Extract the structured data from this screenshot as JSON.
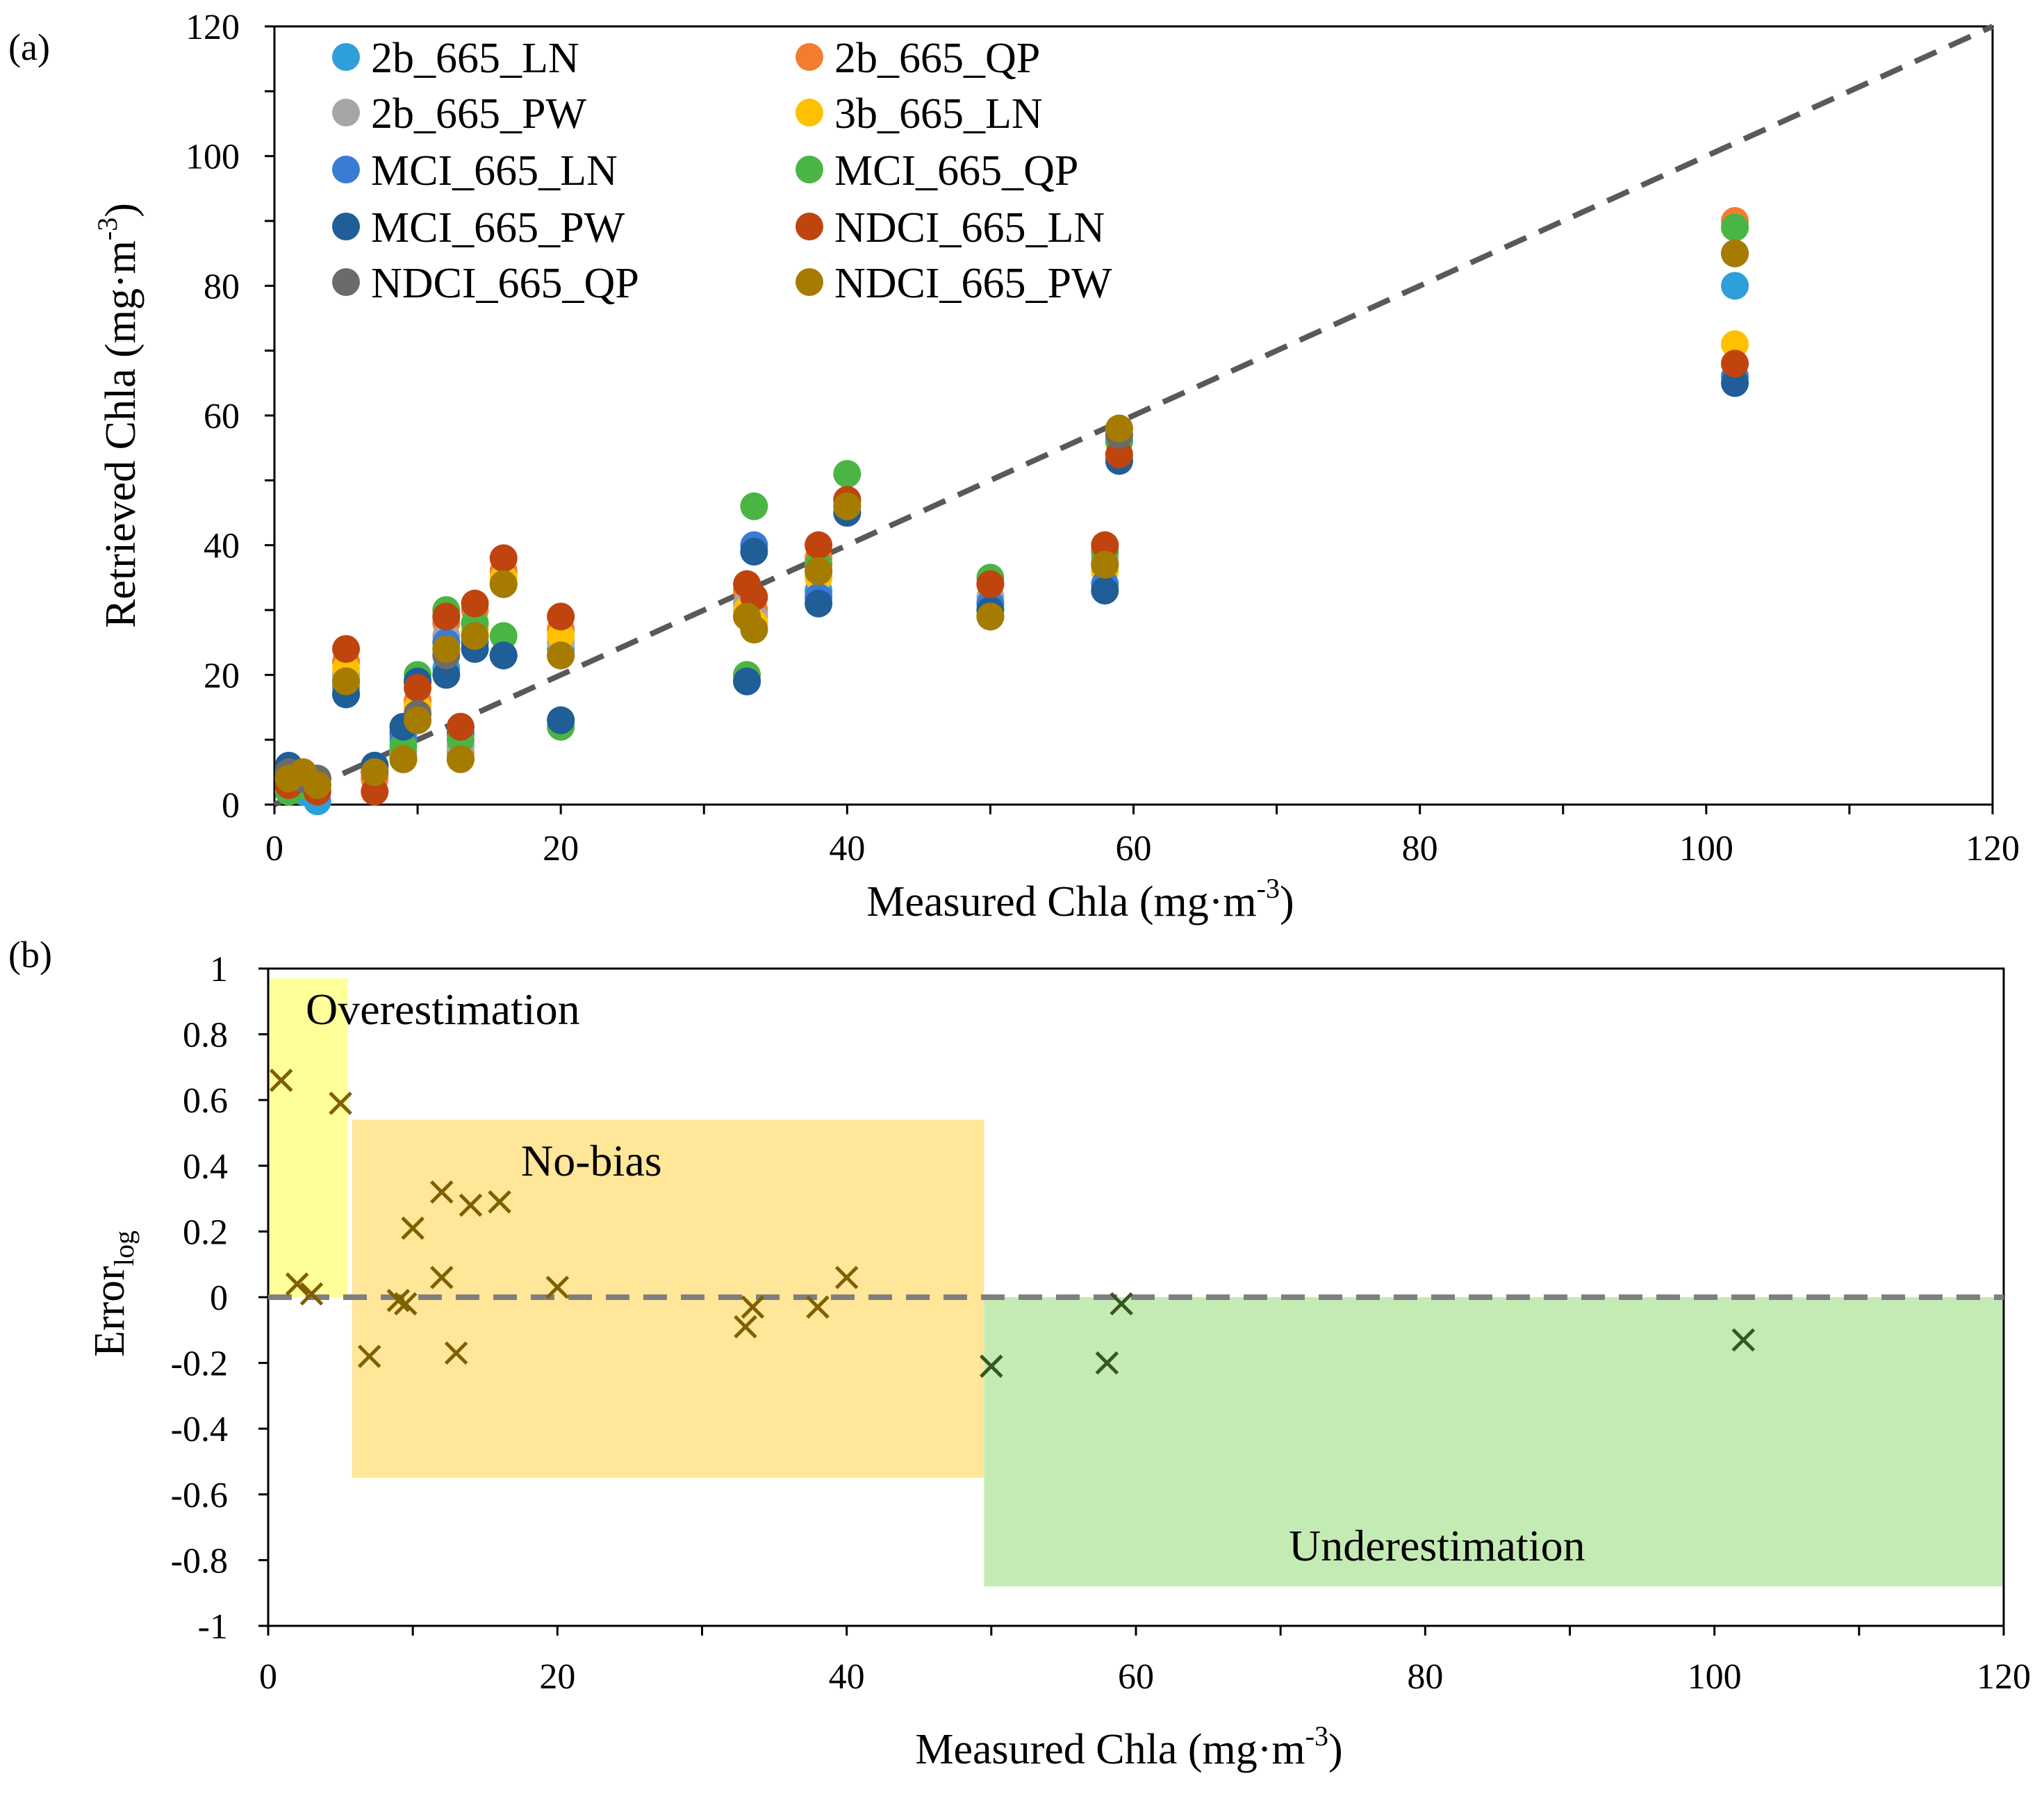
{
  "chart_data": [
    {
      "type": "scatter",
      "panel_label": "(a)",
      "title": "",
      "xlabel": "Measured Chla (mg·m",
      "ylabel": "Retrieved Chla (mg·m",
      "unit_exponent": "-3",
      "unit_close": ")",
      "xlim": [
        0,
        120
      ],
      "ylim": [
        0,
        120
      ],
      "xticks": [
        "0",
        "20",
        "40",
        "60",
        "80",
        "100",
        "120"
      ],
      "yticks": [
        "0",
        "20",
        "40",
        "60",
        "80",
        "100",
        "120"
      ],
      "reference_line": {
        "style": "dashed",
        "color": "#595959",
        "x": [
          0,
          120
        ],
        "y": [
          0,
          120
        ]
      },
      "legend_placement": "top-left",
      "series": [
        {
          "name": "2b_665_LN",
          "color": "#2E9FD8",
          "x": [
            1,
            2,
            3,
            5,
            7,
            9,
            10,
            12,
            13,
            14,
            16,
            20,
            33,
            33.5,
            38,
            40,
            50,
            58,
            59,
            102
          ],
          "y": [
            5,
            2,
            0.5,
            18,
            5,
            10,
            19,
            21,
            11,
            25,
            23,
            24,
            31,
            28,
            33,
            46,
            31,
            37,
            56,
            80
          ]
        },
        {
          "name": "2b_665_QP",
          "color": "#F47C2F",
          "x": [
            1,
            2,
            3,
            5,
            7,
            9,
            10,
            12,
            13,
            14,
            16,
            20,
            33,
            33.5,
            38,
            40,
            50,
            58,
            59,
            102
          ],
          "y": [
            4,
            3,
            3,
            22,
            4,
            8,
            16,
            28,
            8,
            30,
            36,
            27,
            33,
            30,
            38,
            47,
            34,
            39,
            57,
            90
          ]
        },
        {
          "name": "2b_665_PW",
          "color": "#A6A6A6",
          "x": [
            1,
            2,
            3,
            5,
            7,
            9,
            10,
            12,
            13,
            14,
            16,
            20,
            33,
            33.5,
            38,
            40,
            50,
            58,
            59,
            102
          ],
          "y": [
            4,
            3,
            3,
            20,
            5,
            8,
            15,
            26,
            9,
            28,
            34,
            25,
            31,
            29,
            36,
            46,
            32,
            38,
            57,
            89
          ]
        },
        {
          "name": "3b_665_LN",
          "color": "#FFC000",
          "x": [
            1,
            2,
            3,
            5,
            7,
            9,
            10,
            12,
            13,
            14,
            16,
            20,
            33,
            33.5,
            38,
            40,
            50,
            58,
            59,
            102
          ],
          "y": [
            4,
            4,
            3,
            21,
            5,
            7,
            15,
            24,
            10,
            27,
            35,
            26,
            30,
            28,
            35,
            45,
            30,
            36,
            58,
            71
          ]
        },
        {
          "name": "MCI_665_LN",
          "color": "#3A7BD5",
          "x": [
            1,
            2,
            3,
            5,
            7,
            9,
            10,
            12,
            13,
            14,
            16,
            20,
            33,
            33.5,
            38,
            40,
            50,
            58,
            59,
            102
          ],
          "y": [
            5,
            4,
            4,
            17,
            6,
            11,
            19,
            25,
            11,
            25,
            23,
            13,
            19,
            40,
            32,
            45,
            31,
            34,
            53,
            66
          ]
        },
        {
          "name": "MCI_665_QP",
          "color": "#4BB544",
          "x": [
            1,
            2,
            3,
            5,
            7,
            9,
            10,
            12,
            13,
            14,
            16,
            20,
            33,
            33.5,
            38,
            40,
            50,
            58,
            59,
            102
          ],
          "y": [
            2,
            3,
            3,
            19,
            6,
            9,
            20,
            30,
            10,
            28,
            26,
            12,
            20,
            46,
            37,
            51,
            35,
            39,
            56,
            89
          ]
        },
        {
          "name": "MCI_665_PW",
          "color": "#1F5E96",
          "x": [
            1,
            2,
            3,
            5,
            7,
            9,
            10,
            12,
            13,
            14,
            16,
            20,
            33,
            33.5,
            38,
            40,
            50,
            58,
            59,
            102
          ],
          "y": [
            6,
            4,
            4,
            17,
            6,
            12,
            19,
            20,
            12,
            24,
            23,
            13,
            19,
            39,
            31,
            45,
            30,
            33,
            53,
            65
          ]
        },
        {
          "name": "NDCI_665_LN",
          "color": "#C0440E",
          "x": [
            1,
            2,
            3,
            5,
            7,
            9,
            10,
            12,
            13,
            14,
            16,
            20,
            33,
            33.5,
            38,
            40,
            50,
            58,
            59,
            102
          ],
          "y": [
            3,
            4,
            2,
            24,
            2,
            7,
            18,
            29,
            12,
            31,
            38,
            29,
            34,
            32,
            40,
            47,
            34,
            40,
            54,
            68
          ]
        },
        {
          "name": "NDCI_665_QP",
          "color": "#6B6B6B",
          "x": [
            1,
            2,
            3,
            5,
            7,
            9,
            10,
            12,
            13,
            14,
            16,
            20,
            33,
            33.5,
            38,
            40,
            50,
            58,
            59,
            102
          ],
          "y": [
            5,
            4,
            4,
            19,
            5,
            7,
            14,
            23,
            7,
            26,
            34,
            23,
            29,
            27,
            36,
            46,
            29,
            37,
            57,
            85
          ]
        },
        {
          "name": "NDCI_665_PW",
          "color": "#A67C00",
          "x": [
            1,
            2,
            3,
            5,
            7,
            9,
            10,
            12,
            13,
            14,
            16,
            20,
            33,
            33.5,
            38,
            40,
            50,
            58,
            59,
            102
          ],
          "y": [
            4,
            5,
            3,
            19,
            5,
            7,
            13,
            24,
            7,
            26,
            34,
            23,
            29,
            27,
            36,
            46,
            29,
            37,
            58,
            85
          ]
        }
      ]
    },
    {
      "type": "scatter",
      "panel_label": "(b)",
      "title": "",
      "xlabel": "Measured Chla (mg·m",
      "ylabel_main": "Error",
      "ylabel_sub": "log",
      "unit_exponent": "-3",
      "unit_close": ")",
      "xlim": [
        0,
        120
      ],
      "ylim": [
        -1,
        1
      ],
      "xticks": [
        "0",
        "20",
        "40",
        "60",
        "80",
        "100",
        "120"
      ],
      "yticks": [
        "1",
        "0.8",
        "0.6",
        "0.4",
        "0.2",
        "0",
        "-0.2",
        "-0.4",
        "-0.6",
        "-0.8",
        "-1"
      ],
      "reference_line": {
        "style": "dashed",
        "color": "#7F7F7F",
        "y": 0
      },
      "regions": [
        {
          "label": "Overestimation",
          "color": "#FFFF99",
          "x": [
            0,
            5.5
          ],
          "y": [
            0,
            0.97
          ]
        },
        {
          "label": "No-bias",
          "color": "#FFE699",
          "x": [
            5.8,
            49.5
          ],
          "y": [
            -0.55,
            0.54
          ]
        },
        {
          "label": "Underestimation",
          "color": "#C5EBB5",
          "x": [
            49.5,
            120
          ],
          "y": [
            -0.88,
            0
          ]
        }
      ],
      "marker": {
        "symbol": "x",
        "colors": [
          "#7F6000",
          "#375623"
        ]
      },
      "points": {
        "x": [
          0.9,
          2,
          3,
          5,
          7,
          9,
          9.5,
          10,
          12,
          12,
          13,
          14,
          16,
          20,
          33,
          33.5,
          38,
          40,
          50,
          58,
          59,
          102
        ],
        "y": [
          0.66,
          0.04,
          0.01,
          0.59,
          -0.18,
          -0.01,
          -0.02,
          0.21,
          0.32,
          0.06,
          -0.17,
          0.28,
          0.29,
          0.03,
          -0.09,
          -0.03,
          -0.03,
          0.06,
          -0.21,
          -0.2,
          -0.02,
          -0.13
        ]
      }
    }
  ]
}
